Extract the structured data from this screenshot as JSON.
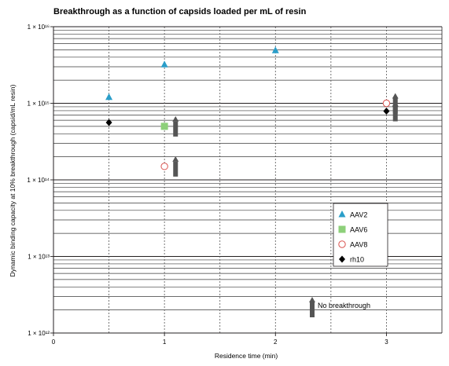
{
  "chart_data": {
    "type": "scatter",
    "title": "Breakthrough as a function of capsids loaded per mL of resin",
    "xlabel": "Residence time (min)",
    "ylabel": "Dynamic binding capacity at 10% breakthrough (capsid/mL resin)",
    "x_scale": "linear",
    "xlim": [
      0,
      3.5
    ],
    "x_ticks": [
      0,
      1,
      2,
      3
    ],
    "x_tick_labels": [
      "0",
      "1",
      "2",
      "3"
    ],
    "y_scale": "log",
    "ylim": [
      1000000000000.0,
      1e+16
    ],
    "y_ticks": [
      1000000000000.0,
      10000000000000.0,
      100000000000000.0,
      1000000000000000.0,
      1e+16
    ],
    "y_tick_labels": [
      "1 × 10¹²",
      "1 × 10¹³",
      "1 × 10¹⁴",
      "1 × 10¹⁵",
      "1 × 10¹⁶"
    ],
    "grid": "horizontal minor lines at each decade step; vertical dashed lines at 0.5 min intervals",
    "legend_position": "right-middle",
    "series": [
      {
        "name": "AAV2",
        "marker": "triangle",
        "color": "#2a9ec9",
        "points": [
          {
            "x": 0.5,
            "y": 1200000000000000.0
          },
          {
            "x": 1.0,
            "y": 3200000000000000.0
          },
          {
            "x": 2.0,
            "y": 4900000000000000.0
          }
        ]
      },
      {
        "name": "AAV6",
        "marker": "square",
        "color": "#8dd07a",
        "points": [
          {
            "x": 1.0,
            "y": 500000000000000.0
          }
        ]
      },
      {
        "name": "AAV8",
        "marker": "open-circle",
        "color": "#d9534f",
        "points": [
          {
            "x": 1.0,
            "y": 150000000000000.0
          },
          {
            "x": 3.0,
            "y": 1000000000000000.0
          }
        ]
      },
      {
        "name": "rh10",
        "marker": "diamond",
        "color": "#000000",
        "points": [
          {
            "x": 0.5,
            "y": 560000000000000.0
          },
          {
            "x": 3.0,
            "y": 790000000000000.0
          }
        ]
      }
    ],
    "no_breakthrough_arrows": [
      {
        "x": 1.1,
        "y": 500000000000000.0
      },
      {
        "x": 1.1,
        "y": 150000000000000.0
      },
      {
        "x": 3.08,
        "y": 1000000000000000.0
      },
      {
        "x": 3.08,
        "y": 790000000000000.0
      }
    ],
    "annotation_label": "No breakthrough",
    "annotation_arrow_color": "#555555"
  }
}
